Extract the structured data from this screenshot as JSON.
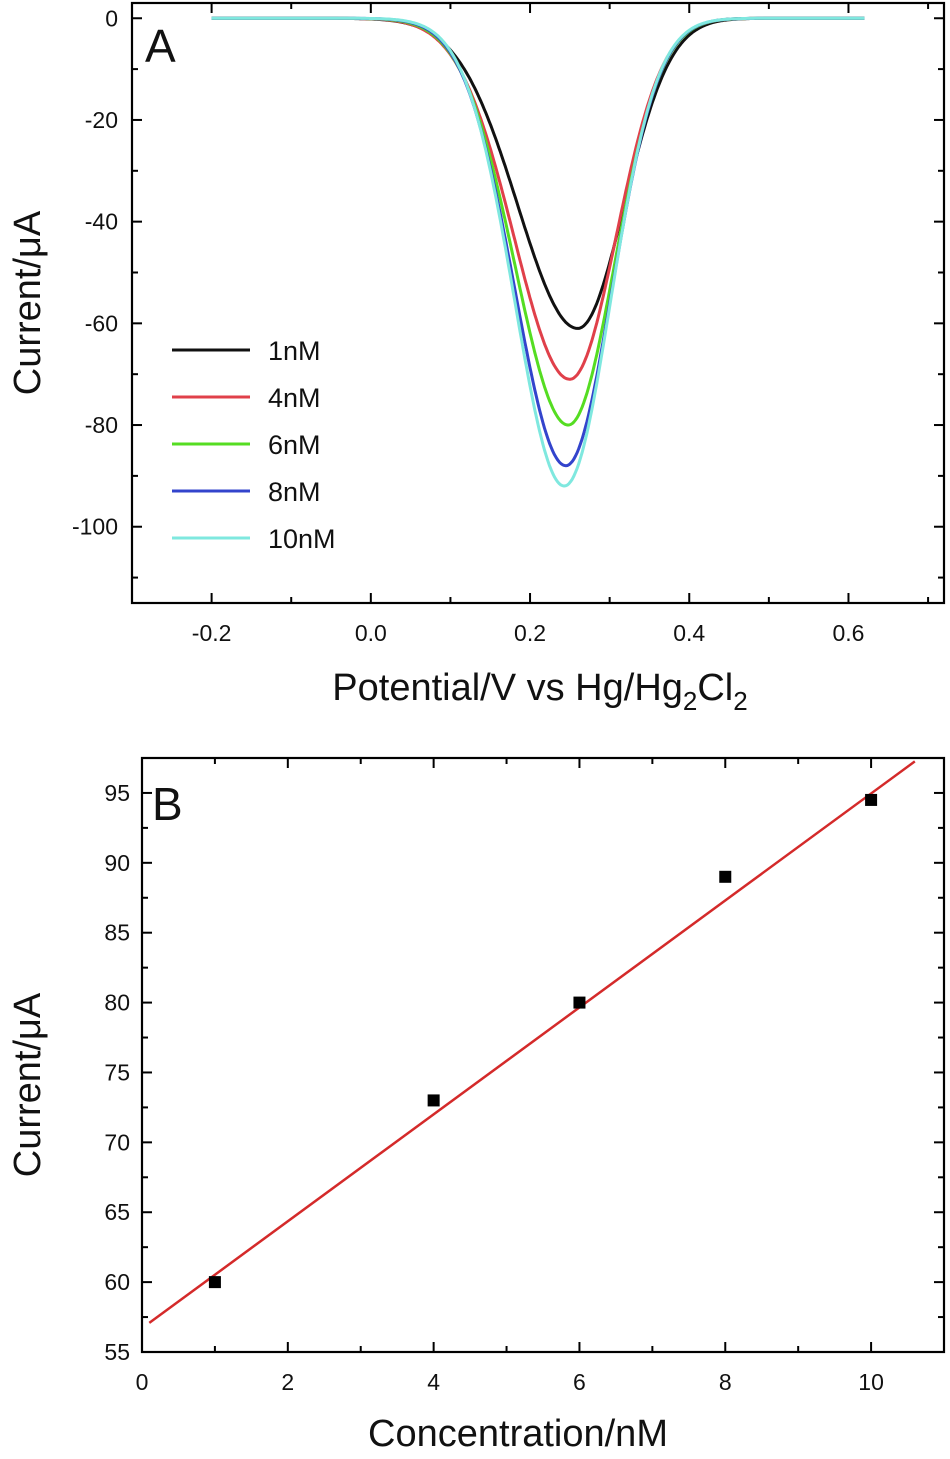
{
  "chart_data": [
    {
      "panel": "A",
      "type": "line",
      "xlabel_main": "Potential/V vs Hg/Hg",
      "xlabel_sub1": "2",
      "xlabel_mid": "Cl",
      "xlabel_sub2": "2",
      "ylabel": "Current/μA",
      "xlim": [
        -0.3,
        0.72
      ],
      "ylim": [
        -115,
        3
      ],
      "xticks": [
        -0.2,
        0.0,
        0.2,
        0.4,
        0.6
      ],
      "xtick_labels": [
        "-0.2",
        "0.0",
        "0.2",
        "0.4",
        "0.6"
      ],
      "yticks": [
        0,
        -20,
        -40,
        -60,
        -80,
        -100
      ],
      "ytick_labels": [
        "0",
        "-20",
        "-40",
        "-60",
        "-80",
        "-100"
      ],
      "x_range": [
        -0.2,
        0.62
      ],
      "series": [
        {
          "name": "1nM",
          "color": "#111111",
          "peak": -61,
          "center": 0.26,
          "rise_width": 0.075,
          "fall_width": 0.058
        },
        {
          "name": "4nM",
          "color": "#e0404a",
          "peak": -71,
          "center": 0.25,
          "rise_width": 0.07,
          "fall_width": 0.058
        },
        {
          "name": "6nM",
          "color": "#55dd22",
          "peak": -80,
          "center": 0.248,
          "rise_width": 0.067,
          "fall_width": 0.058
        },
        {
          "name": "8nM",
          "color": "#3344cc",
          "peak": -88,
          "center": 0.245,
          "rise_width": 0.064,
          "fall_width": 0.058
        },
        {
          "name": "10nM",
          "color": "#7fe8df",
          "peak": -92,
          "center": 0.243,
          "rise_width": 0.062,
          "fall_width": 0.058
        }
      ],
      "legend_position": "left"
    },
    {
      "panel": "B",
      "type": "scatter",
      "xlabel": "Concentration/nM",
      "ylabel": "Current/μA",
      "xlim": [
        0,
        11
      ],
      "ylim": [
        55,
        97.5
      ],
      "xticks": [
        0,
        2,
        4,
        6,
        8,
        10
      ],
      "xtick_labels": [
        "0",
        "2",
        "4",
        "6",
        "8",
        "10"
      ],
      "yticks": [
        55,
        60,
        65,
        70,
        75,
        80,
        85,
        90,
        95
      ],
      "ytick_labels": [
        "55",
        "60",
        "65",
        "70",
        "75",
        "80",
        "85",
        "90",
        "95"
      ],
      "points": [
        {
          "x": 1,
          "y": 60
        },
        {
          "x": 4,
          "y": 73
        },
        {
          "x": 6,
          "y": 80
        },
        {
          "x": 8,
          "y": 89
        },
        {
          "x": 10,
          "y": 94.5
        }
      ],
      "fit": {
        "slope": 3.826,
        "intercept": 56.7,
        "x_range": [
          0.1,
          10.6
        ],
        "color": "#d42a2a"
      },
      "marker_color": "#000000"
    }
  ]
}
